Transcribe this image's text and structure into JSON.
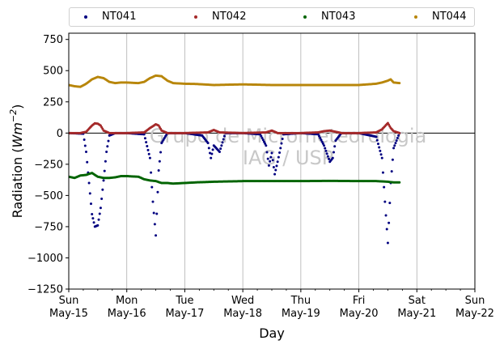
{
  "chart_data": {
    "type": "scatter",
    "xlabel": "Day",
    "ylabel_prefix": "Radiation (",
    "ylabel_unit_base": "Wm",
    "ylabel_unit_exp": "−2",
    "ylabel_suffix": ")",
    "ylim": [
      -1250,
      800
    ],
    "yticks": [
      -1250,
      -1000,
      -750,
      -500,
      -250,
      0,
      250,
      500,
      750
    ],
    "ytick_labels": [
      "−1250",
      "−1000",
      "−750",
      "−500",
      "−250",
      "0",
      "250",
      "500",
      "750"
    ],
    "xlim_days": [
      0,
      7
    ],
    "xticks": [
      {
        "day": 0,
        "line1": "Sun",
        "line2": "May-15"
      },
      {
        "day": 1,
        "line1": "Mon",
        "line2": "May-16"
      },
      {
        "day": 2,
        "line1": "Tue",
        "line2": "May-17"
      },
      {
        "day": 3,
        "line1": "Wed",
        "line2": "May-18"
      },
      {
        "day": 4,
        "line1": "Thu",
        "line2": "May-19"
      },
      {
        "day": 5,
        "line1": "Fri",
        "line2": "May-20"
      },
      {
        "day": 6,
        "line1": "Sat",
        "line2": "May-21"
      },
      {
        "day": 7,
        "line1": "Sun",
        "line2": "May-22"
      }
    ],
    "grid": "vertical",
    "legend_position": "top",
    "watermark_line1": "Grupo de Micrometeorologia",
    "watermark_line2": "IAG / USP",
    "series": [
      {
        "name": "NT041",
        "color": "#000080",
        "x": [
          0,
          0.25,
          0.3,
          0.35,
          0.4,
          0.45,
          0.5,
          0.55,
          0.6,
          0.65,
          0.7,
          0.8,
          1.0,
          1.3,
          1.4,
          1.45,
          1.5,
          1.55,
          1.6,
          1.7,
          2.0,
          2.3,
          2.4,
          2.45,
          2.5,
          2.6,
          2.7,
          3.0,
          3.3,
          3.4,
          3.45,
          3.5,
          3.55,
          3.6,
          3.7,
          4.0,
          4.3,
          4.4,
          4.5,
          4.55,
          4.6,
          4.7,
          5.0,
          5.3,
          5.4,
          5.45,
          5.5,
          5.55,
          5.6,
          5.7
        ],
        "y": [
          0,
          -5,
          -150,
          -400,
          -650,
          -750,
          -740,
          -600,
          -380,
          -150,
          -20,
          0,
          0,
          -10,
          -200,
          -550,
          -820,
          -300,
          -80,
          0,
          0,
          -20,
          -80,
          -200,
          -100,
          -150,
          0,
          0,
          -10,
          -100,
          -260,
          -160,
          -330,
          -230,
          -10,
          0,
          -10,
          -100,
          -230,
          -200,
          -60,
          0,
          0,
          -30,
          -200,
          -550,
          -880,
          -400,
          -120,
          0
        ]
      },
      {
        "name": "NT042",
        "color": "#a52a2a",
        "x": [
          0,
          0.2,
          0.3,
          0.4,
          0.45,
          0.5,
          0.55,
          0.6,
          0.7,
          0.8,
          1.0,
          1.3,
          1.4,
          1.5,
          1.55,
          1.6,
          1.7,
          2.0,
          2.4,
          2.5,
          2.6,
          3.0,
          3.4,
          3.5,
          3.6,
          4.0,
          4.3,
          4.4,
          4.5,
          4.6,
          4.7,
          5.0,
          5.3,
          5.4,
          5.5,
          5.55,
          5.6,
          5.7
        ],
        "y": [
          0,
          0,
          10,
          60,
          78,
          75,
          60,
          20,
          0,
          0,
          0,
          5,
          40,
          70,
          60,
          20,
          0,
          0,
          5,
          25,
          5,
          0,
          5,
          20,
          0,
          0,
          5,
          15,
          20,
          10,
          0,
          0,
          5,
          30,
          80,
          40,
          15,
          0
        ]
      },
      {
        "name": "NT043",
        "color": "#006400",
        "x": [
          0,
          0.1,
          0.2,
          0.3,
          0.4,
          0.5,
          0.6,
          0.7,
          0.8,
          0.9,
          1.0,
          1.2,
          1.3,
          1.4,
          1.5,
          1.6,
          1.7,
          1.8,
          2.0,
          2.2,
          2.5,
          3.0,
          3.5,
          4.0,
          4.5,
          5.0,
          5.3,
          5.5,
          5.6,
          5.7
        ],
        "y": [
          -350,
          -360,
          -340,
          -335,
          -320,
          -350,
          -360,
          -360,
          -355,
          -345,
          -345,
          -350,
          -370,
          -380,
          -385,
          -400,
          -400,
          -405,
          -400,
          -395,
          -390,
          -385,
          -385,
          -385,
          -383,
          -385,
          -385,
          -390,
          -395,
          -395
        ]
      },
      {
        "name": "NT044",
        "color": "#b8860b",
        "x": [
          0,
          0.1,
          0.2,
          0.3,
          0.4,
          0.5,
          0.6,
          0.7,
          0.8,
          0.9,
          1.0,
          1.2,
          1.3,
          1.4,
          1.5,
          1.6,
          1.7,
          1.8,
          2.0,
          2.2,
          2.5,
          3.0,
          3.5,
          4.0,
          4.5,
          5.0,
          5.3,
          5.4,
          5.5,
          5.55,
          5.6,
          5.7
        ],
        "y": [
          385,
          375,
          370,
          395,
          430,
          450,
          440,
          410,
          400,
          405,
          405,
          400,
          410,
          440,
          460,
          455,
          420,
          400,
          395,
          393,
          385,
          390,
          385,
          385,
          385,
          385,
          395,
          405,
          420,
          430,
          405,
          400
        ]
      }
    ]
  }
}
